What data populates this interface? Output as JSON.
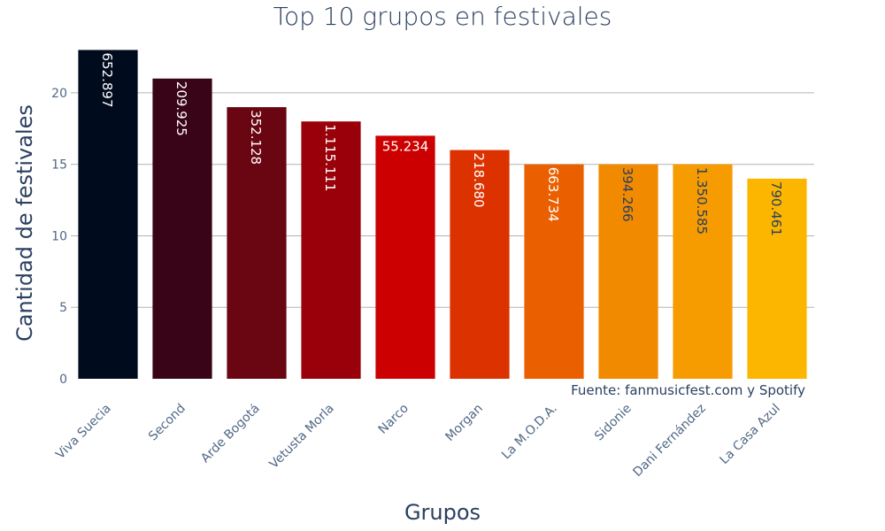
{
  "chart_data": {
    "type": "bar",
    "title": "Top 10 grupos en festivales",
    "xlabel": "Grupos",
    "ylabel": "Cantidad de festivales",
    "categories": [
      "Viva Suecia",
      "Second",
      "Arde Bogotá",
      "Vetusta Morla",
      "Narco",
      "Morgan",
      "La M.O.D.A.",
      "Sidonie",
      "Dani Fernández",
      "La Casa Azul"
    ],
    "values": [
      23,
      21,
      19,
      18,
      17,
      16,
      15,
      15,
      15,
      14
    ],
    "bar_labels": [
      "652.897",
      "209.925",
      "352.128",
      "1.115.111",
      "55.234",
      "218.680",
      "663.734",
      "394.266",
      "1.350.585",
      "790.461"
    ],
    "bar_label_orientation": [
      "vertical",
      "vertical",
      "vertical",
      "vertical",
      "horizontal",
      "vertical",
      "vertical",
      "vertical",
      "vertical",
      "vertical"
    ],
    "bar_label_colors": [
      "#ffffff",
      "#ffffff",
      "#ffffff",
      "#ffffff",
      "#ffffff",
      "#ffffff",
      "#ffffff",
      "#2a3f5f",
      "#2a3f5f",
      "#2a3f5f"
    ],
    "colors": [
      "#000b1e",
      "#3a0418",
      "#690612",
      "#9a000a",
      "#cc0000",
      "#dc3200",
      "#ea6000",
      "#f28a00",
      "#f79c00",
      "#fdb600"
    ],
    "yticks": [
      0,
      5,
      10,
      15,
      20
    ],
    "ylim": [
      0,
      23.4
    ],
    "grid": true,
    "annotation": "Fuente: fanmusicfest.com y Spotify"
  }
}
